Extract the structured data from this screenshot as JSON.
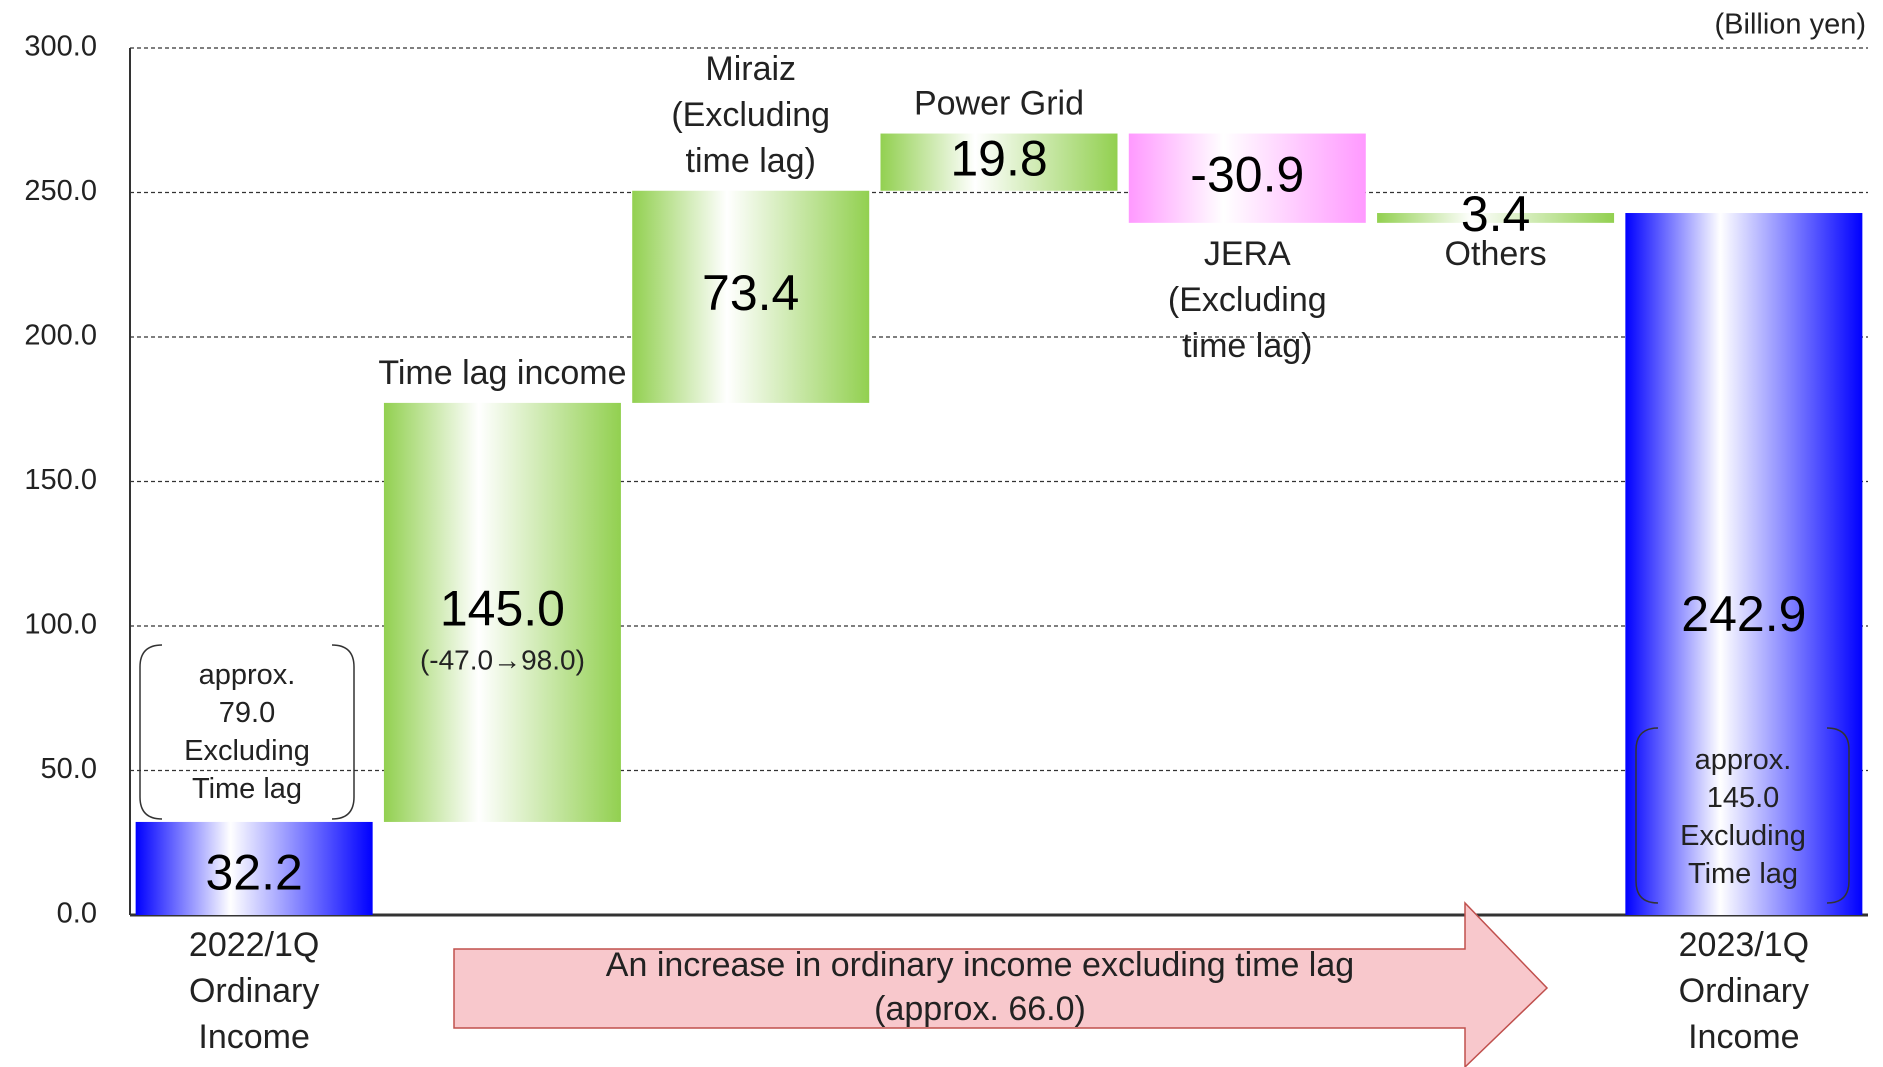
{
  "chart_data": {
    "type": "waterfall",
    "unit_label": "(Billion yen)",
    "categories": [
      "2022/1Q\nOrdinary\nIncome",
      "Time lag income",
      "Miraiz\n(Excluding\ntime lag)",
      "Power Grid",
      "JERA\n(Excluding\ntime lag)",
      "Others",
      "2023/1Q\nOrdinary\nIncome"
    ],
    "values": [
      32.2,
      145.0,
      73.4,
      19.8,
      -30.9,
      3.4,
      242.9
    ],
    "value_labels": [
      "32.2",
      "145.0",
      "73.4",
      "19.8",
      "-30.9",
      "3.4",
      "242.9"
    ],
    "colors": {
      "total": "#0000ff",
      "increase": "#92d050",
      "decrease": "#ff99ff"
    },
    "ylim": [
      0,
      300
    ],
    "yticks": [
      {
        "value": 0,
        "label": "0.0"
      },
      {
        "value": 50,
        "label": "50.0"
      },
      {
        "value": 100,
        "label": "100.0"
      },
      {
        "value": 150,
        "label": "150.0"
      },
      {
        "value": 200,
        "label": "200.0"
      },
      {
        "value": 250,
        "label": "250.0"
      },
      {
        "value": 300,
        "label": "300.0"
      }
    ],
    "grid": true,
    "annotations": [
      {
        "text": "(-47.0→98.0)"
      },
      {
        "text": "approx.\n79.0\nExcluding\nTime lag"
      },
      {
        "text": "approx.\n145.0\nExcluding\nTime lag"
      },
      {
        "text": "An increase in ordinary income excluding time lag\n(approx. 66.0)"
      }
    ]
  }
}
